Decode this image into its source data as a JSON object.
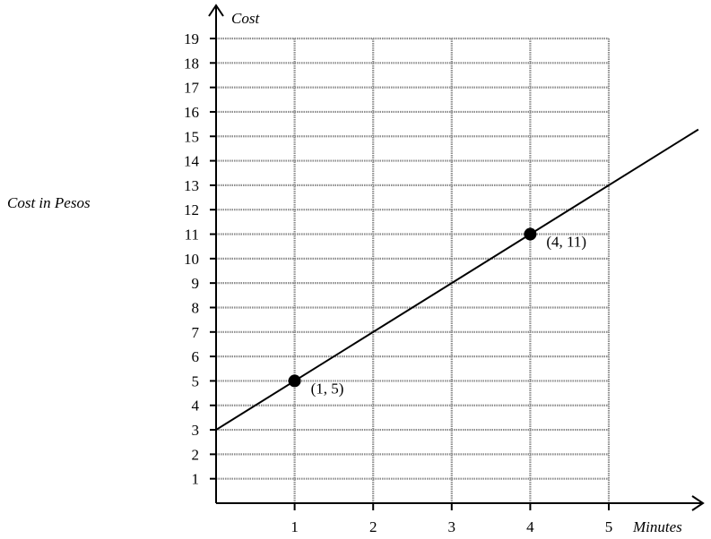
{
  "chart_data": {
    "type": "line",
    "x_axis_label": "Minutes",
    "y_axis_label": "Cost",
    "side_label": "Cost in Pesos",
    "xlim": [
      0,
      5
    ],
    "ylim": [
      0,
      19
    ],
    "x_ticks": [
      1,
      2,
      3,
      4,
      5
    ],
    "y_ticks": [
      1,
      2,
      3,
      4,
      5,
      6,
      7,
      8,
      9,
      10,
      11,
      12,
      13,
      14,
      15,
      16,
      17,
      18,
      19
    ],
    "grid": true,
    "line": {
      "slope": 2,
      "intercept": 3,
      "x_range": [
        0,
        6.14
      ]
    },
    "points": [
      {
        "x": 1,
        "y": 5,
        "label": "(1, 5)"
      },
      {
        "x": 4,
        "y": 11,
        "label": "(4, 11)"
      }
    ]
  }
}
